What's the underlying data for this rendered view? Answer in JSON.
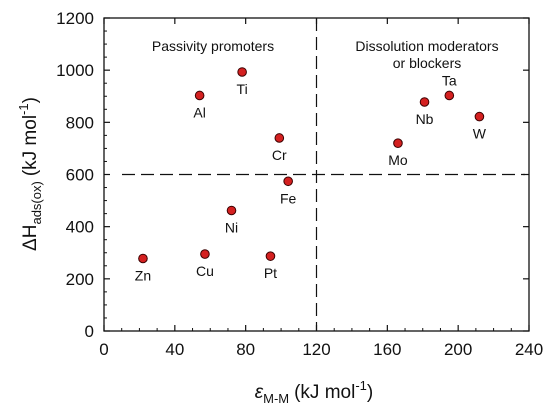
{
  "chart_data": {
    "type": "scatter",
    "x_axis": {
      "symbol": "ε",
      "subscript": "M-M",
      "unit": "(kJ mol",
      "unit_exp": "-1",
      "unit_close": ")",
      "range": [
        0,
        240
      ],
      "ticks": [
        0,
        40,
        80,
        120,
        160,
        200,
        240
      ]
    },
    "y_axis": {
      "symbol": "ΔH",
      "subscript": "ads(ox)",
      "unit": "(kJ mol",
      "unit_exp": "-1",
      "unit_close": ")",
      "range": [
        0,
        1200
      ],
      "ticks": [
        0,
        200,
        400,
        600,
        800,
        1000,
        1200
      ]
    },
    "reference_lines": {
      "x": 120,
      "y": 600,
      "style": "dashed"
    },
    "regions": {
      "left": [
        "Passivity promoters"
      ],
      "right": [
        "Dissolution moderators",
        "or blockers"
      ]
    },
    "points": [
      {
        "label": "Zn",
        "x": 22,
        "y": 278,
        "label_pos": "below"
      },
      {
        "label": "Cu",
        "x": 57,
        "y": 295,
        "label_pos": "below"
      },
      {
        "label": "Pt",
        "x": 94,
        "y": 287,
        "label_pos": "below"
      },
      {
        "label": "Ni",
        "x": 72,
        "y": 462,
        "label_pos": "below"
      },
      {
        "label": "Fe",
        "x": 104,
        "y": 574,
        "label_pos": "below"
      },
      {
        "label": "Cr",
        "x": 99,
        "y": 740,
        "label_pos": "below"
      },
      {
        "label": "Al",
        "x": 54,
        "y": 903,
        "label_pos": "below"
      },
      {
        "label": "Ti",
        "x": 78,
        "y": 993,
        "label_pos": "below"
      },
      {
        "label": "Mo",
        "x": 166,
        "y": 720,
        "label_pos": "below"
      },
      {
        "label": "Nb",
        "x": 181,
        "y": 878,
        "label_pos": "below"
      },
      {
        "label": "Ta",
        "x": 195,
        "y": 903,
        "label_pos": "above"
      },
      {
        "label": "W",
        "x": 212,
        "y": 822,
        "label_pos": "below"
      }
    ],
    "marker_color": "#d42020",
    "marker_edge": "#3a0000",
    "grid": false,
    "legend": "none"
  }
}
